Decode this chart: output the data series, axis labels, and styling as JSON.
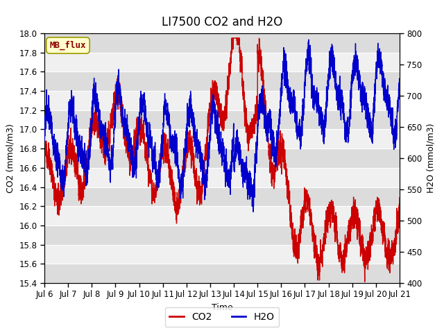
{
  "title": "LI7500 CO2 and H2O",
  "xlabel": "Time",
  "ylabel_left": "CO2 (mmol/m3)",
  "ylabel_right": "H2O (mmol/m3)",
  "co2_ylim": [
    15.4,
    18.0
  ],
  "h2o_ylim": [
    400,
    800
  ],
  "co2_yticks": [
    15.4,
    15.6,
    15.8,
    16.0,
    16.2,
    16.4,
    16.6,
    16.8,
    17.0,
    17.2,
    17.4,
    17.6,
    17.8,
    18.0
  ],
  "h2o_yticks": [
    400,
    450,
    500,
    550,
    600,
    650,
    700,
    750,
    800
  ],
  "xtick_labels": [
    "Jul 6",
    "Jul 7",
    "Jul 8",
    "Jul 9",
    "Jul 10",
    "Jul 11",
    "Jul 12",
    "Jul 13",
    "Jul 14",
    "Jul 15",
    "Jul 16",
    "Jul 17",
    "Jul 18",
    "Jul 19",
    "Jul 20",
    "Jul 21"
  ],
  "co2_color": "#cc0000",
  "h2o_color": "#0000cc",
  "background_color": "#ffffff",
  "plot_bg_light": "#f0f0f0",
  "plot_bg_dark": "#dcdcdc",
  "grid_color": "#ffffff",
  "watermark_text": "MB_flux",
  "watermark_fgcolor": "#8b0000",
  "watermark_bgcolor": "#ffffcc",
  "legend_co2": "CO2",
  "legend_h2o": "H2O",
  "title_fontsize": 12,
  "axis_fontsize": 9,
  "tick_fontsize": 8.5,
  "linewidth": 1.0
}
